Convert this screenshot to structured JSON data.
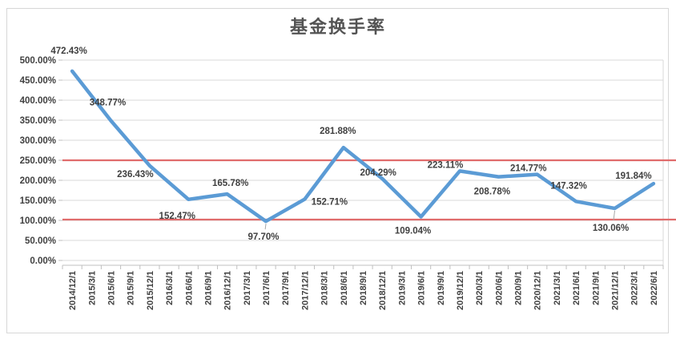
{
  "chart_data": {
    "type": "line",
    "title": "基金换手率",
    "categories": [
      "2014/12/1",
      "2015/3/1",
      "2015/6/1",
      "2015/9/1",
      "2015/12/1",
      "2016/3/1",
      "2016/6/1",
      "2016/9/1",
      "2016/12/1",
      "2017/3/1",
      "2017/6/1",
      "2017/9/1",
      "2017/12/1",
      "2018/3/1",
      "2018/6/1",
      "2018/9/1",
      "2018/12/1",
      "2019/3/1",
      "2019/6/1",
      "2019/9/1",
      "2019/12/1",
      "2020/3/1",
      "2020/6/1",
      "2020/9/1",
      "2020/12/1",
      "2021/3/1",
      "2021/6/1",
      "2021/9/1",
      "2021/12/1",
      "2022/3/1",
      "2022/6/1"
    ],
    "series": [
      {
        "name": "基金换手率",
        "color": "#5b9bd5",
        "points": [
          {
            "category": "2014/12/1",
            "value": 472.43,
            "label": "472.43%",
            "label_dx": -4,
            "label_dy": -26,
            "leader": false
          },
          {
            "category": "2015/6/1",
            "value": 348.77,
            "label": "348.77%",
            "label_dx": -4,
            "label_dy": -23,
            "leader": false
          },
          {
            "category": "2015/12/1",
            "value": 236.43,
            "label": "236.43%",
            "label_dx": -18,
            "label_dy": 10,
            "leader": false
          },
          {
            "category": "2016/6/1",
            "value": 152.47,
            "label": "152.47%",
            "label_dx": -14,
            "label_dy": 20,
            "leader": false
          },
          {
            "category": "2016/12/1",
            "value": 165.78,
            "label": "165.78%",
            "label_dx": 4,
            "label_dy": -14,
            "leader": false
          },
          {
            "category": "2017/6/1",
            "value": 97.7,
            "label": "97.70%",
            "label_dx": -3,
            "label_dy": 19,
            "leader": true
          },
          {
            "category": "2017/12/1",
            "value": 152.71,
            "label": "152.71%",
            "label_dx": 31,
            "label_dy": 3,
            "leader": false
          },
          {
            "category": "2018/6/1",
            "value": 281.88,
            "label": "281.88%",
            "label_dx": -7,
            "label_dy": -21,
            "leader": false
          },
          {
            "category": "2018/12/1",
            "value": 204.29,
            "label": "204.29%",
            "label_dx": -5,
            "label_dy": -8,
            "leader": false
          },
          {
            "category": "2019/6/1",
            "value": 109.04,
            "label": "109.04%",
            "label_dx": -10,
            "label_dy": 17,
            "leader": false
          },
          {
            "category": "2019/12/1",
            "value": 223.11,
            "label": "223.11%",
            "label_dx": -18,
            "label_dy": -8,
            "leader": false
          },
          {
            "category": "2020/6/1",
            "value": 208.78,
            "label": "208.78%",
            "label_dx": -8,
            "label_dy": 18,
            "leader": false
          },
          {
            "category": "2020/12/1",
            "value": 214.77,
            "label": "214.77%",
            "label_dx": -11,
            "label_dy": -8,
            "leader": false
          },
          {
            "category": "2021/6/1",
            "value": 147.32,
            "label": "147.32%",
            "label_dx": -9,
            "label_dy": -20,
            "leader": false
          },
          {
            "category": "2021/12/1",
            "value": 130.06,
            "label": "130.06%",
            "label_dx": -5,
            "label_dy": 24,
            "leader": true
          },
          {
            "category": "2022/6/1",
            "value": 191.84,
            "label": "191.84%",
            "label_dx": -25,
            "label_dy": -10,
            "leader": false
          }
        ]
      }
    ],
    "y_axis": {
      "min": 0,
      "max": 500,
      "step": 50,
      "tick_labels": [
        "0.00%",
        "50.00%",
        "100.00%",
        "150.00%",
        "200.00%",
        "250.00%",
        "300.00%",
        "350.00%",
        "400.00%",
        "450.00%",
        "500.00%"
      ]
    },
    "reference_lines": [
      {
        "value": 250,
        "color": "#e06c6c"
      },
      {
        "value": 102,
        "color": "#e06c6c"
      }
    ],
    "grid": "horizontal",
    "legend": "none",
    "colors": {
      "line": "#5b9bd5",
      "gridline": "#d9d9d9",
      "axis": "#bfbfbf",
      "label_text": "#3f3f3f",
      "leader": "#a6a6a6"
    }
  }
}
